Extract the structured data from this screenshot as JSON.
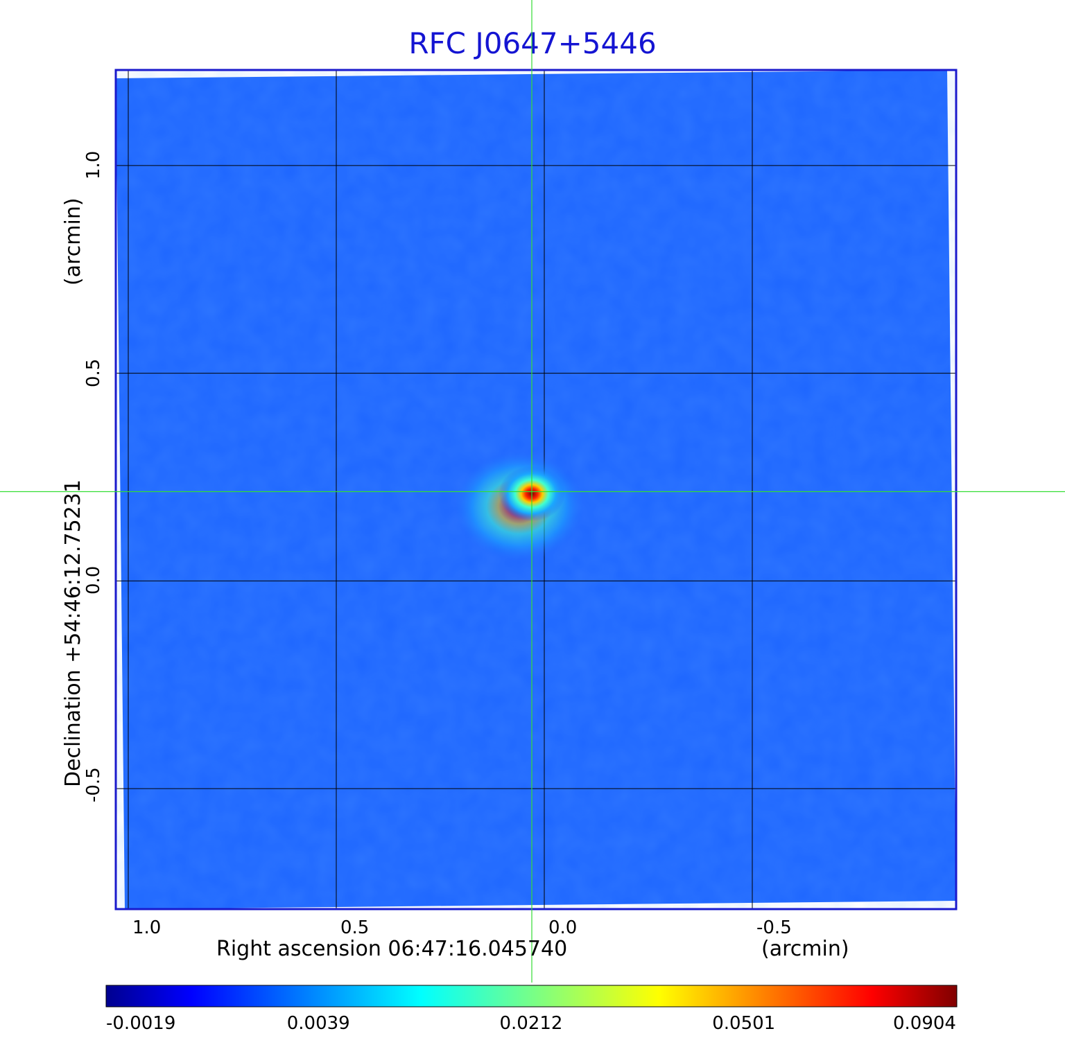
{
  "chart_data": {
    "type": "heatmap",
    "title": "RFC J0647+5446",
    "xlabel": "Right ascension  06:47:16.045740",
    "xlabel_unit": "(arcmin)",
    "ylabel": "Declination  +54:46:12.75231",
    "ylabel_unit": "(arcmin)",
    "x_ticks": [
      "1.0",
      "0.5",
      "0.0",
      "-0.5"
    ],
    "y_ticks": [
      "1.0",
      "0.5",
      "0.0",
      "-0.5"
    ],
    "x_tick_values": [
      1.0,
      0.5,
      0.0,
      -0.5
    ],
    "y_tick_values": [
      1.0,
      0.5,
      0.0,
      -0.5
    ],
    "xlim": [
      1.03,
      -0.99
    ],
    "ylim": [
      -0.79,
      1.23
    ],
    "grid": true,
    "crosshair": {
      "x": 0.03,
      "y": 0.215,
      "color": "#33dd33"
    },
    "peak": {
      "x": 0.03,
      "y": 0.21,
      "value": 0.0904
    },
    "colorbar": {
      "ticks": [
        "-0.0019",
        "0.0039",
        "0.0212",
        "0.0501",
        "0.0904"
      ],
      "colormap": [
        "#00008f",
        "#0000ff",
        "#00ffff",
        "#ffff00",
        "#ff0000",
        "#800000"
      ]
    },
    "colors": {
      "title": "#1414d2",
      "frame": "#1a1acc",
      "background_field": "#1e66ff"
    }
  }
}
